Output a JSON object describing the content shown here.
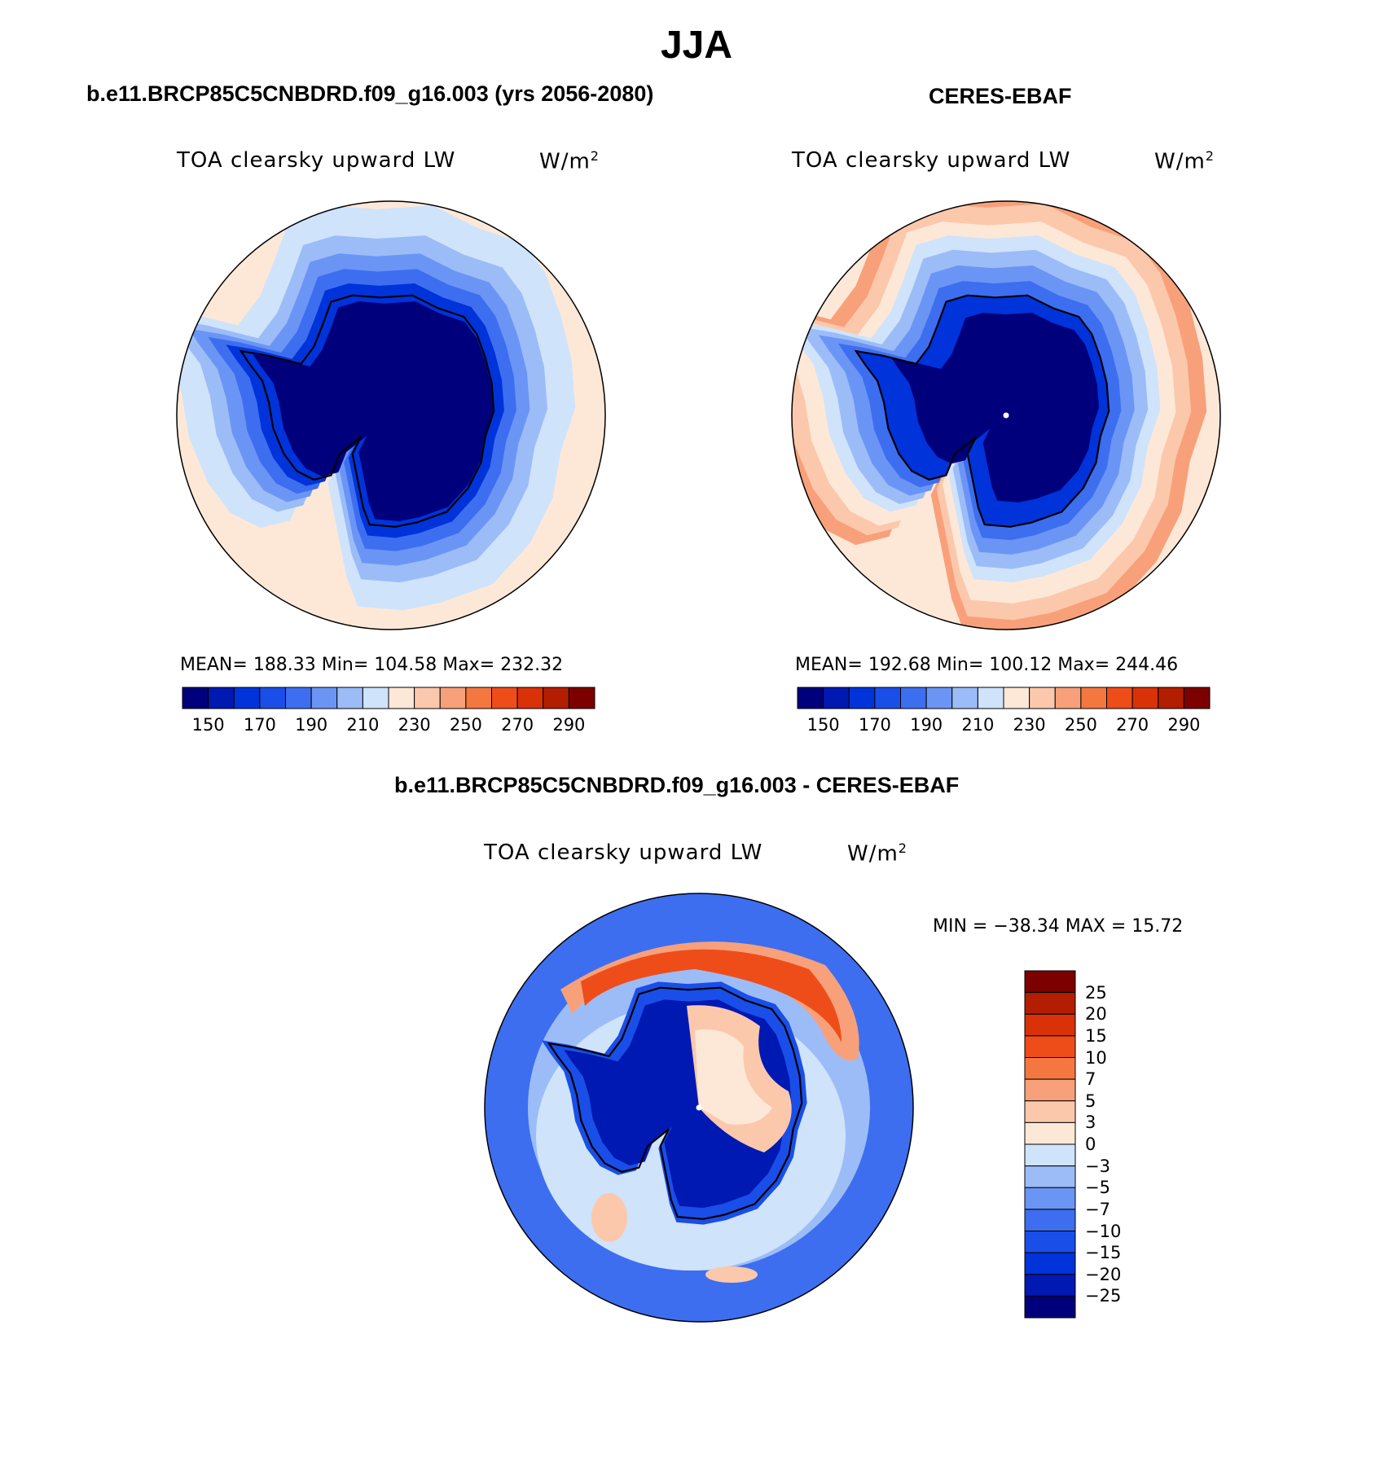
{
  "page_title": "JJA",
  "palette_abs": [
    "#00007c",
    "#0019b2",
    "#0033d9",
    "#1a4ee8",
    "#3d6ef0",
    "#6b95f5",
    "#9cbcf8",
    "#cfe3fb",
    "#fde8d8",
    "#fcc8ac",
    "#f8a07a",
    "#f4773f",
    "#ee4d1a",
    "#d93108",
    "#b31e00",
    "#7c0000"
  ],
  "palette_diff": [
    "#00007c",
    "#0019b2",
    "#0033d9",
    "#1a4ee8",
    "#3d6ef0",
    "#6b95f5",
    "#9cbcf8",
    "#cfe3fb",
    "#fde8d8",
    "#fcc8ac",
    "#f8a07a",
    "#f4773f",
    "#ee4d1a",
    "#d93108",
    "#b31e00",
    "#7c0000"
  ],
  "panels": [
    {
      "title": "b.e11.BRCP85C5CNBDRD.f09_g16.003 (yrs 2056-2080)",
      "variable": "TOA clearsky upward LW",
      "units": "W/m",
      "units_sup": "2",
      "stats": "MEAN= 188.33   Min= 104.58   Max= 232.32",
      "colorbar_ticks": [
        "150",
        "170",
        "190",
        "210",
        "230",
        "250",
        "270",
        "290"
      ]
    },
    {
      "title": "CERES-EBAF",
      "variable": "TOA clearsky upward LW",
      "units": "W/m",
      "units_sup": "2",
      "stats": "MEAN= 192.68   Min= 100.12   Max= 244.46",
      "colorbar_ticks": [
        "150",
        "170",
        "190",
        "210",
        "230",
        "250",
        "270",
        "290"
      ]
    }
  ],
  "diff_panel": {
    "title": "b.e11.BRCP85C5CNBDRD.f09_g16.003 - CERES-EBAF",
    "variable": "TOA clearsky upward LW",
    "units": "W/m",
    "units_sup": "2",
    "stats": "MIN = −38.34 MAX =  15.72",
    "colorbar_ticks": [
      "25",
      "20",
      "15",
      "10",
      "7",
      "5",
      "3",
      "0",
      "−3",
      "−5",
      "−7",
      "−10",
      "−15",
      "−20",
      "−25"
    ]
  }
}
